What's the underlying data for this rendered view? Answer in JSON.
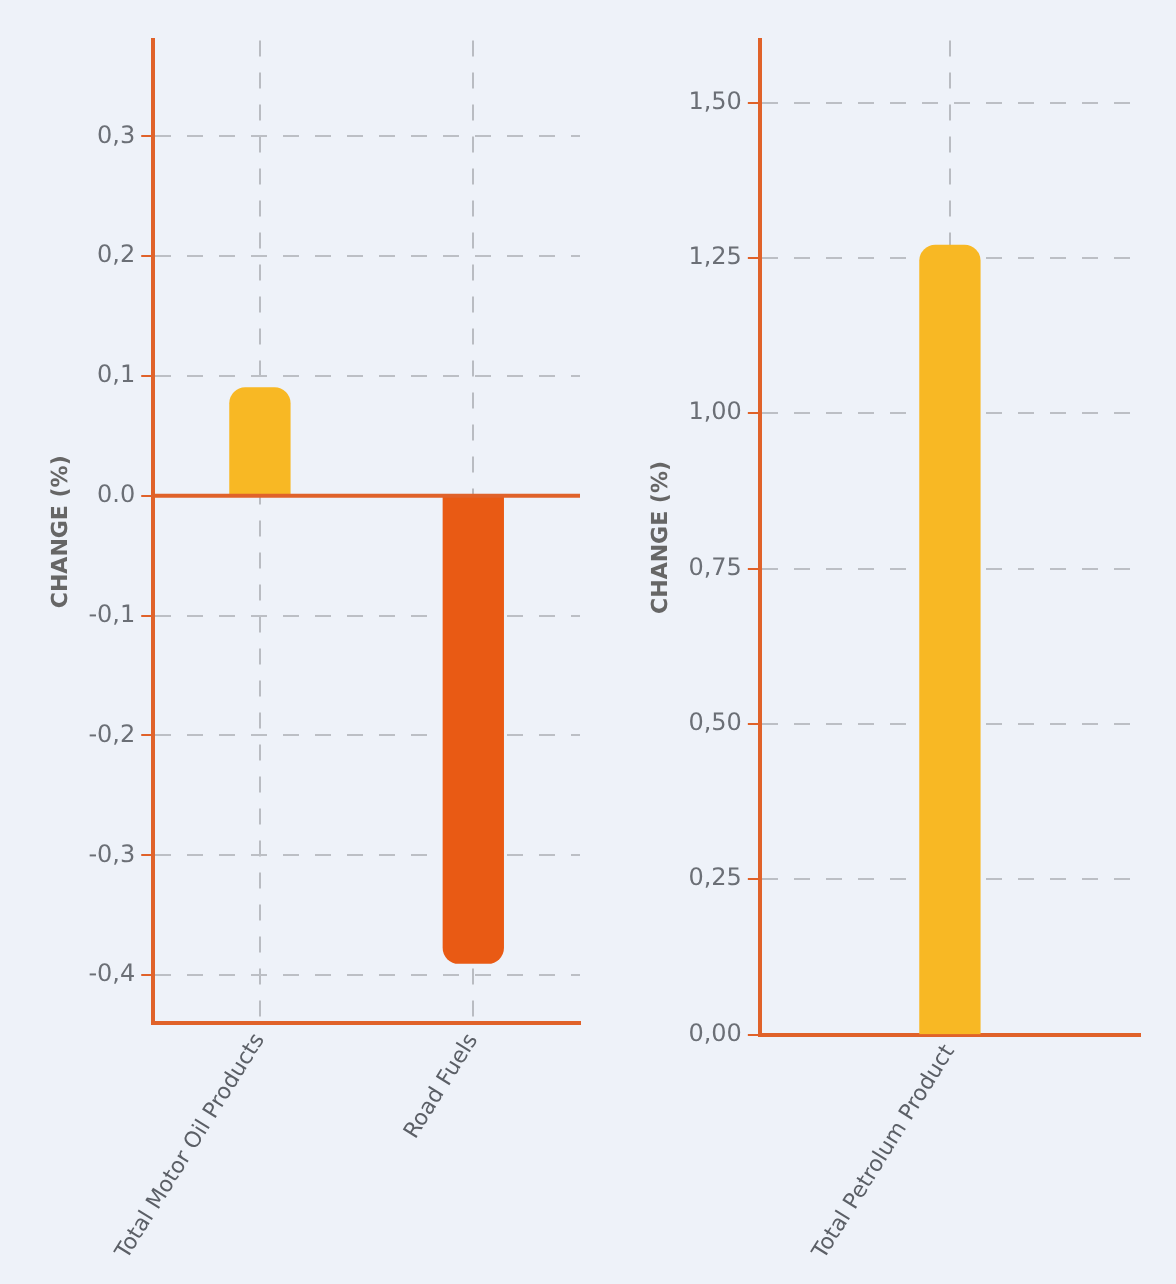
{
  "chart_data": [
    {
      "type": "bar",
      "ylabel": "CHANGE (%)",
      "categories": [
        "Total Motor Oil Products",
        "Road Fuels"
      ],
      "series": [
        {
          "colors": [
            "#f8b824",
            "#e95a14"
          ],
          "values": [
            0.09,
            -0.39
          ]
        }
      ],
      "ylim": [
        -0.44,
        0.38
      ],
      "yticks": [
        {
          "value": 0.3,
          "label": "0,3"
        },
        {
          "value": 0.2,
          "label": "0,2"
        },
        {
          "value": 0.1,
          "label": "0,1"
        },
        {
          "value": 0,
          "label": "0.0"
        },
        {
          "value": -0.1,
          "label": "-0,1"
        },
        {
          "value": -0.2,
          "label": "-0,2"
        },
        {
          "value": -0.3,
          "label": "-0,3"
        },
        {
          "value": -0.4,
          "label": "-0,4"
        }
      ],
      "grid": true,
      "legend": false,
      "ref_lines": [
        {
          "axis": "y",
          "value": 0,
          "color": "#e0622a"
        }
      ]
    },
    {
      "type": "bar",
      "ylabel": "CHANGE (%)",
      "categories": [
        "Total Petrolum Product"
      ],
      "series": [
        {
          "colors": [
            "#f8b824"
          ],
          "values": [
            1.27
          ]
        }
      ],
      "ylim": [
        0,
        1.6
      ],
      "yticks": [
        {
          "value": 0,
          "label": "0,00"
        },
        {
          "value": 0.25,
          "label": "0,25"
        },
        {
          "value": 0.5,
          "label": "0,50"
        },
        {
          "value": 0.75,
          "label": "0,75"
        },
        {
          "value": 1,
          "label": "1,00"
        },
        {
          "value": 1.25,
          "label": "1,25"
        },
        {
          "value": 1.5,
          "label": "1,50"
        }
      ],
      "grid": true,
      "legend": false
    }
  ]
}
